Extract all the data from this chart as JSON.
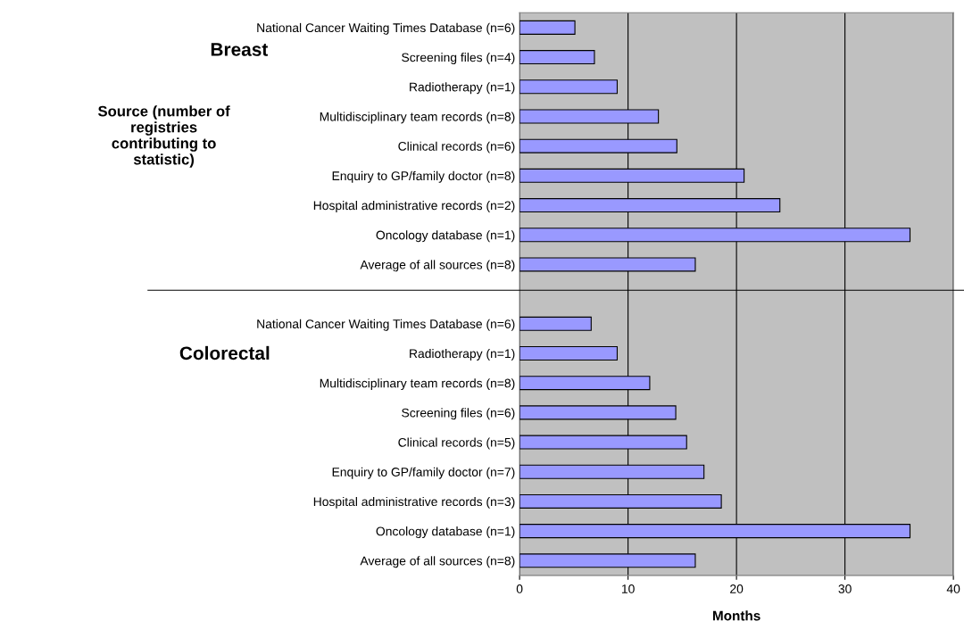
{
  "chart_data": {
    "type": "bar",
    "orientation": "horizontal",
    "categories": [
      "National Cancer Waiting Times Database (n=6)",
      "Screening files (n=4)",
      "Radiotherapy (n=1)",
      "Multidisciplinary team records (n=8)",
      "Clinical records (n=6)",
      "Enquiry to GP/family doctor (n=8)",
      "Hospital administrative records (n=2)",
      "Oncology database (n=1)",
      "Average of all sources (n=8)",
      null,
      "National Cancer Waiting Times Database (n=6)",
      "Radiotherapy (n=1)",
      "Multidisciplinary team records (n=8)",
      "Screening files (n=6)",
      "Clinical records (n=5)",
      "Enquiry to GP/family doctor (n=7)",
      "Hospital administrative records (n=3)",
      "Oncology database (n=1)",
      "Average of all sources (n=8)"
    ],
    "values": [
      5.1,
      6.9,
      9.0,
      12.8,
      14.5,
      20.7,
      24.0,
      36.0,
      16.2,
      null,
      6.6,
      9.0,
      12.0,
      14.4,
      15.4,
      17.0,
      18.6,
      36.0,
      16.2
    ],
    "color": "#9999ff",
    "xlim": [
      0,
      40
    ],
    "xticks": [
      0,
      10,
      20,
      30,
      40
    ],
    "xlabel": "Months",
    "ylabel": "Source (number of\nregistries\ncontributing to\nstatistic)",
    "annotations": [
      "Breast",
      "Colorectal"
    ],
    "grid": "x"
  }
}
